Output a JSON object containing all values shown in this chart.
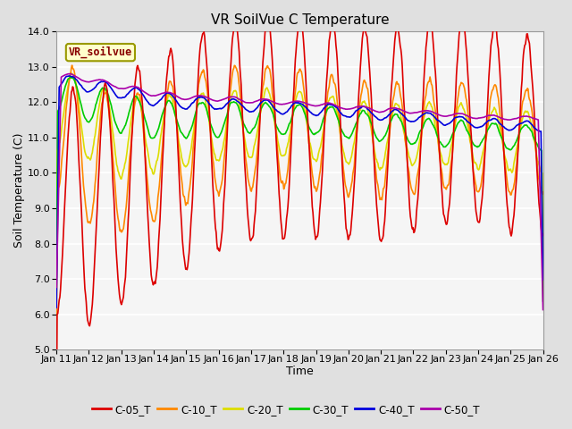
{
  "title": "VR SoilVue C Temperature",
  "xlabel": "Time",
  "ylabel": "Soil Temperature (C)",
  "ylim": [
    5.0,
    14.0
  ],
  "yticks": [
    5.0,
    6.0,
    7.0,
    8.0,
    9.0,
    10.0,
    11.0,
    12.0,
    13.0,
    14.0
  ],
  "date_labels": [
    "Jan 11",
    "Jan 12",
    "Jan 13",
    "Jan 14",
    "Jan 15",
    "Jan 16",
    "Jan 17",
    "Jan 18",
    "Jan 19",
    "Jan 20",
    "Jan 21",
    "Jan 22",
    "Jan 23",
    "Jan 24",
    "Jan 25",
    "Jan 26"
  ],
  "series_colors": {
    "C-05_T": "#dd0000",
    "C-10_T": "#ff8800",
    "C-20_T": "#dddd00",
    "C-30_T": "#00cc00",
    "C-40_T": "#0000dd",
    "C-50_T": "#aa00aa"
  },
  "legend_label": "VR_soilvue",
  "background_color": "#e0e0e0",
  "plot_bg_color": "#f5f5f5",
  "grid_color": "#ffffff",
  "title_fontsize": 11,
  "axis_fontsize": 9,
  "tick_fontsize": 8
}
